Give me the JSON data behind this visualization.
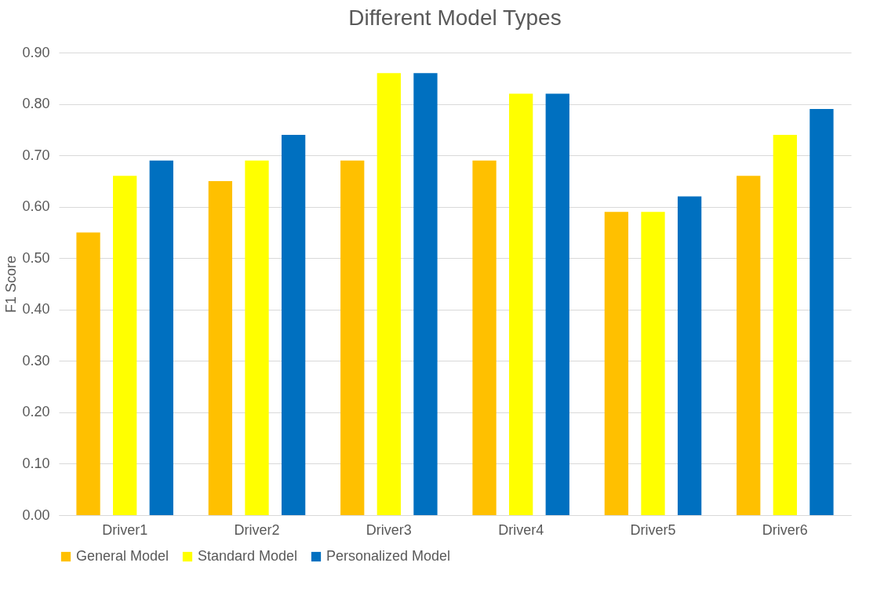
{
  "chart_data": {
    "type": "bar",
    "title": "Different Model Types",
    "ylabel": "F1 Score",
    "categories": [
      "Driver1",
      "Driver2",
      "Driver3",
      "Driver4",
      "Driver5",
      "Driver6"
    ],
    "series": [
      {
        "name": "General Model",
        "color": "#ffc000",
        "values": [
          0.55,
          0.65,
          0.69,
          0.69,
          0.59,
          0.66
        ]
      },
      {
        "name": "Standard Model",
        "color": "#ffff00",
        "values": [
          0.66,
          0.69,
          0.86,
          0.82,
          0.59,
          0.74
        ]
      },
      {
        "name": "Personalized Model",
        "color": "#0070c0",
        "values": [
          0.69,
          0.74,
          0.86,
          0.82,
          0.62,
          0.79
        ]
      }
    ],
    "ylim": [
      0,
      0.9
    ],
    "yticks": [
      {
        "value": 0,
        "label": "0.00"
      },
      {
        "value": 0.1,
        "label": "0.10"
      },
      {
        "value": 0.2,
        "label": "0.20"
      },
      {
        "value": 0.3,
        "label": "0.30"
      },
      {
        "value": 0.4,
        "label": "0.40"
      },
      {
        "value": 0.5,
        "label": "0.50"
      },
      {
        "value": 0.6,
        "label": "0.60"
      },
      {
        "value": 0.7,
        "label": "0.70"
      },
      {
        "value": 0.8,
        "label": "0.80"
      },
      {
        "value": 0.9,
        "label": "0.90"
      }
    ],
    "grid": "y",
    "legend": "bottom"
  }
}
